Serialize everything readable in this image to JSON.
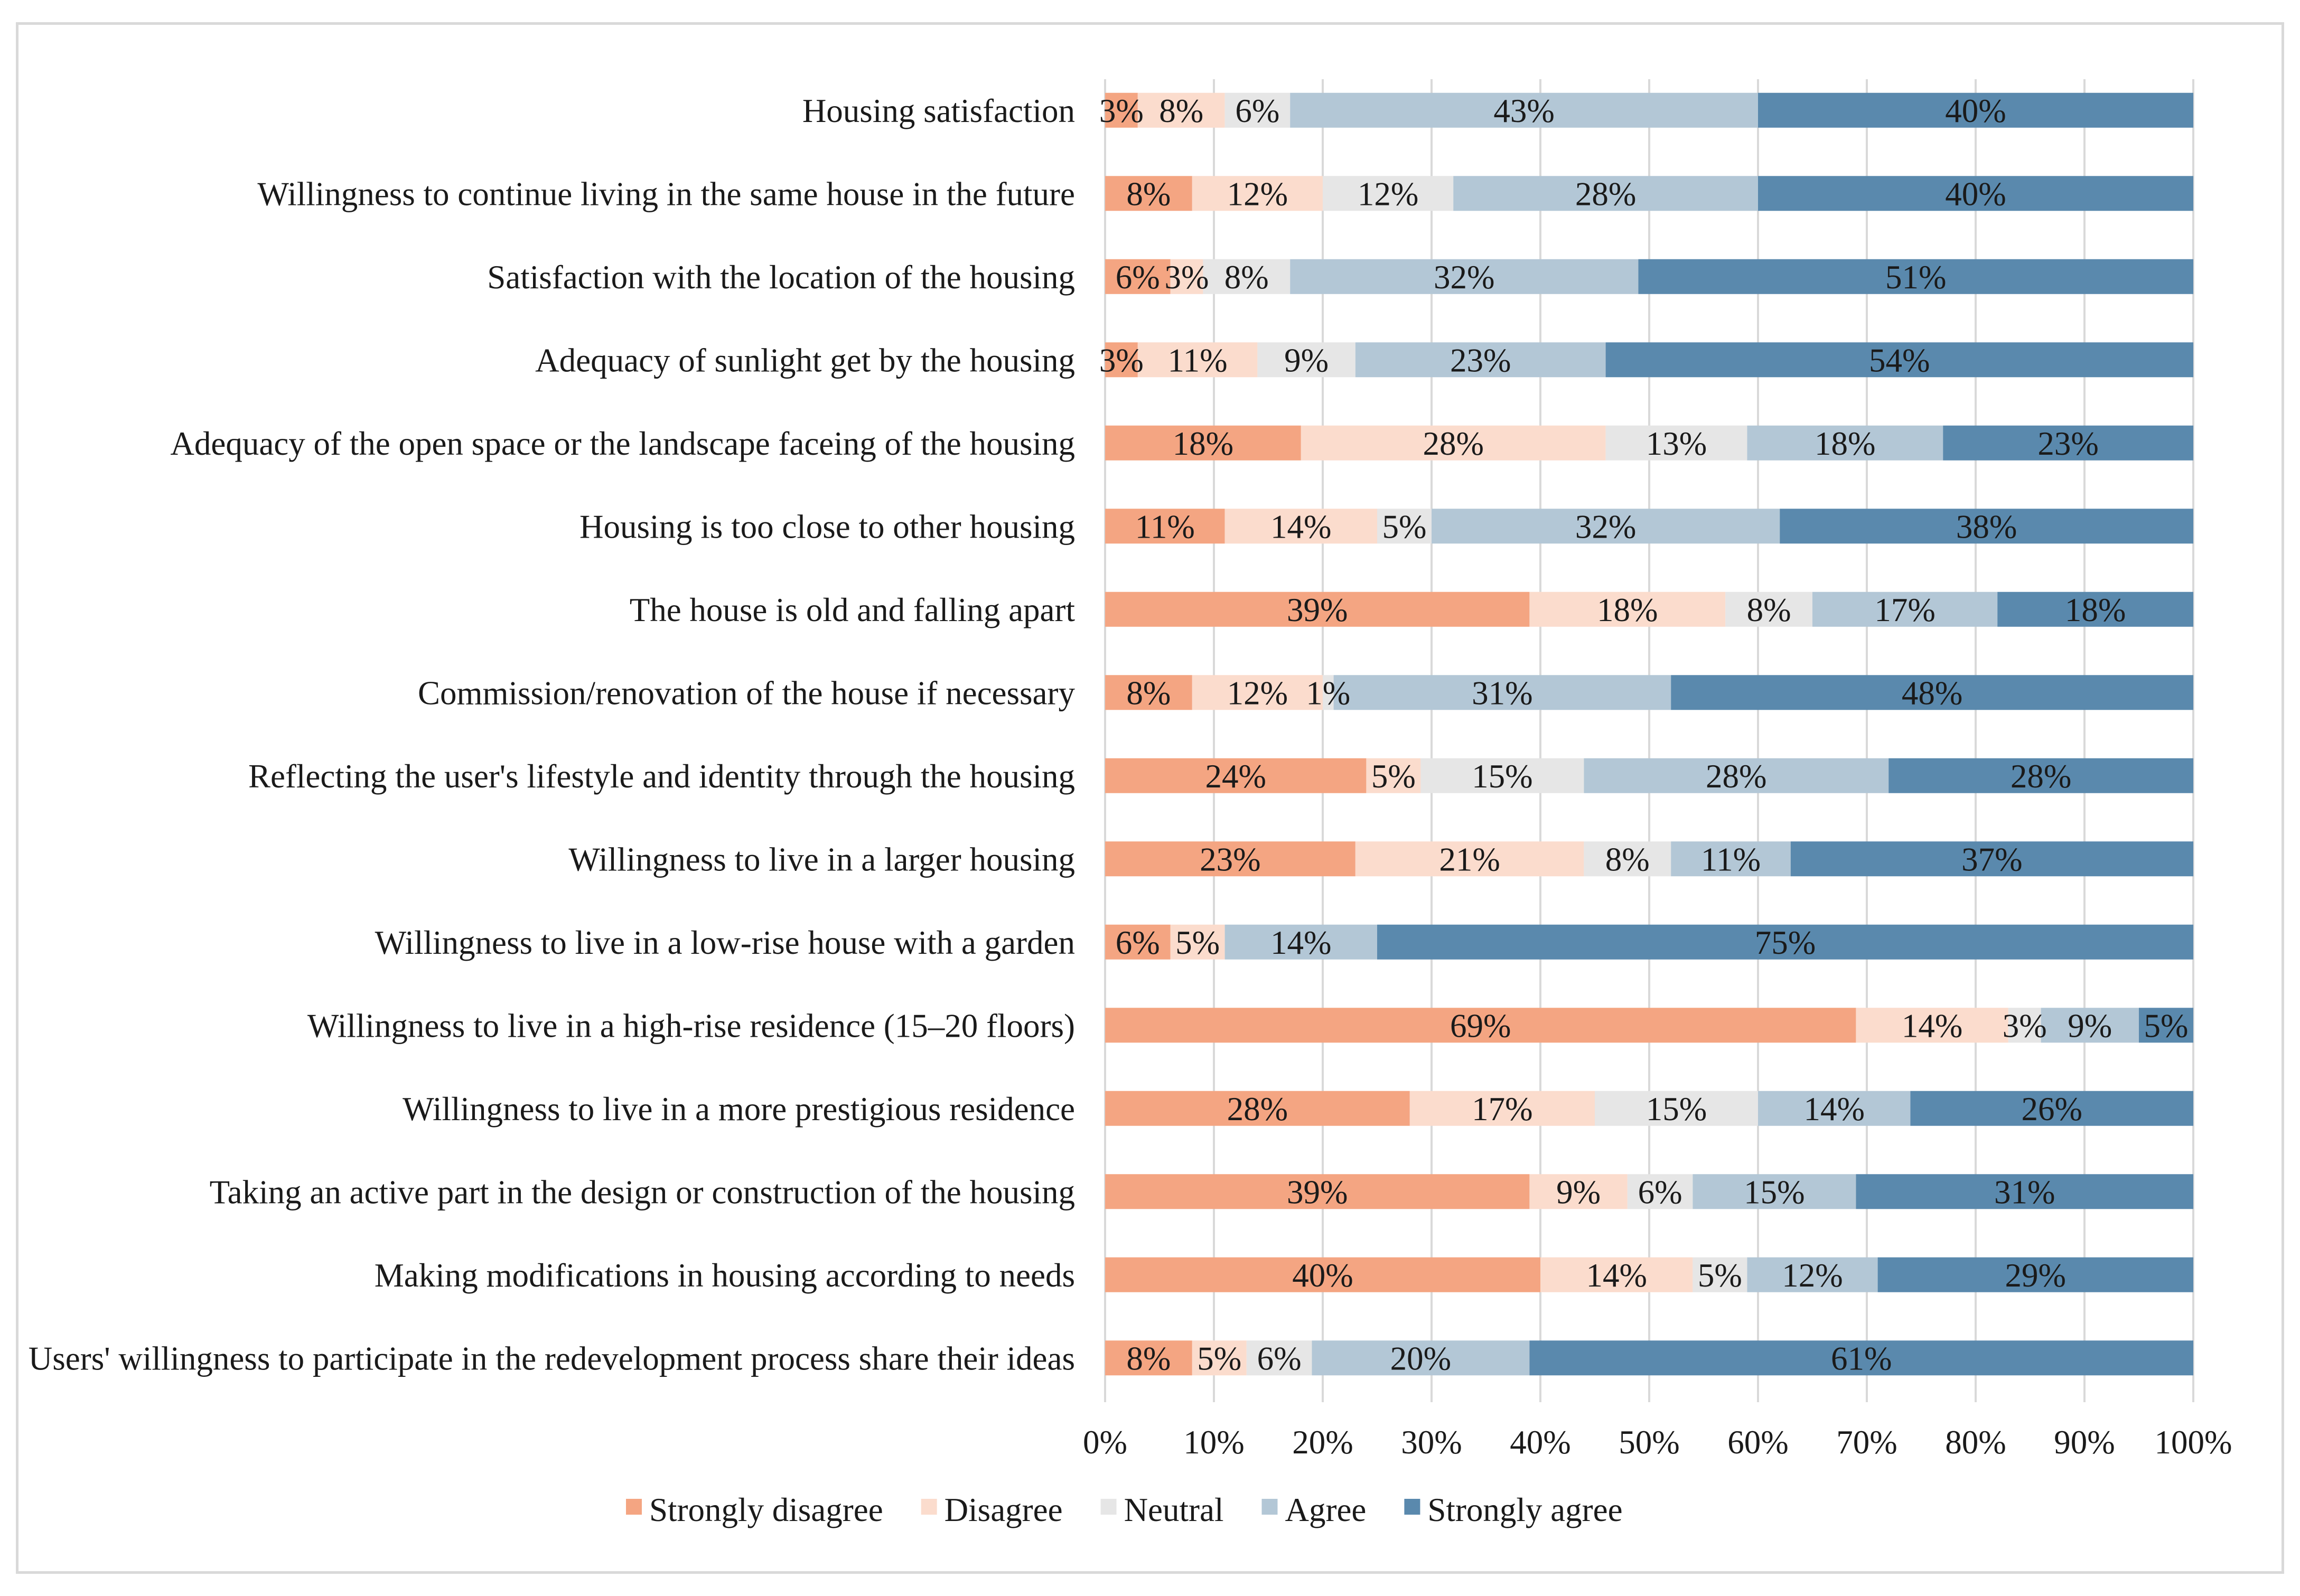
{
  "chart_data": {
    "type": "bar",
    "orientation": "horizontal",
    "stacked": "percent",
    "title": "",
    "xlabel": "",
    "ylabel": "",
    "xlim": [
      0,
      100
    ],
    "x_ticks": [
      "0%",
      "10%",
      "20%",
      "30%",
      "40%",
      "50%",
      "60%",
      "70%",
      "80%",
      "90%",
      "100%"
    ],
    "grid": true,
    "legend_position": "bottom",
    "categories": [
      "Housing satisfaction",
      "Willingness to continue living in the same house in the future",
      "Satisfaction with the location of the housing",
      "Adequacy of sunlight get by the housing",
      "Adequacy of the open space or the landscape faceing of the housing",
      "Housing is too close to other housing",
      "The house is old and falling apart",
      "Commission/renovation of the house if necessary",
      "Reflecting the user's lifestyle and identity through the housing",
      "Willingness to live in a larger housing",
      "Willingness to live in a low-rise house with a garden",
      "Willingness to live in a high-rise residence (15–20 floors)",
      "Willingness to live in a more prestigious residence",
      "Taking an active part in the design or construction of the housing",
      "Making modifications in housing according to needs",
      "Users' willingness to participate in the redevelopment process share their ideas"
    ],
    "series": [
      {
        "name": "Strongly disagree",
        "color": "#f4a582",
        "values": [
          3,
          8,
          6,
          3,
          18,
          11,
          39,
          8,
          24,
          23,
          6,
          69,
          28,
          39,
          40,
          8
        ]
      },
      {
        "name": "Disagree",
        "color": "#fbdccd",
        "values": [
          8,
          12,
          3,
          11,
          28,
          14,
          18,
          12,
          5,
          21,
          5,
          14,
          17,
          9,
          14,
          5
        ]
      },
      {
        "name": "Neutral",
        "color": "#e6e6e6",
        "values": [
          6,
          12,
          8,
          9,
          13,
          5,
          8,
          1,
          15,
          8,
          0,
          3,
          15,
          6,
          5,
          6
        ]
      },
      {
        "name": "Agree",
        "color": "#b3c7d6",
        "values": [
          43,
          28,
          32,
          23,
          18,
          32,
          17,
          31,
          28,
          11,
          14,
          9,
          14,
          15,
          12,
          20
        ]
      },
      {
        "name": "Strongly agree",
        "color": "#5a89ad",
        "values": [
          40,
          40,
          51,
          54,
          23,
          38,
          18,
          48,
          28,
          37,
          75,
          5,
          26,
          31,
          29,
          61
        ]
      }
    ],
    "data_labels": [
      [
        "3%",
        "8%",
        "6%",
        "43%",
        "40%"
      ],
      [
        "8%",
        "12%",
        "12%",
        "28%",
        "40%"
      ],
      [
        "6%",
        "3%",
        "8%",
        "32%",
        "51%"
      ],
      [
        "3%",
        "11%",
        "9%",
        "23%",
        "54%"
      ],
      [
        "18%",
        "28%",
        "13%",
        "18%",
        "23%"
      ],
      [
        "11%",
        "14%",
        "5%",
        "32%",
        "38%"
      ],
      [
        "39%",
        "18%",
        "8%",
        "17%",
        "18%"
      ],
      [
        "8%",
        "12%",
        "1%",
        "31%",
        "48%"
      ],
      [
        "24%",
        "5%",
        "15%",
        "28%",
        "28%"
      ],
      [
        "23%",
        "21%",
        "8%",
        "11%",
        "37%"
      ],
      [
        "6%",
        "5%",
        "",
        "14%",
        "75%"
      ],
      [
        "69%",
        "14%",
        "3%",
        "9%",
        "5%"
      ],
      [
        "28%",
        "17%",
        "15%",
        "14%",
        "26%"
      ],
      [
        "39%",
        "9%",
        "6%",
        "15%",
        "31%"
      ],
      [
        "40%",
        "14%",
        "5%",
        "12%",
        "29%"
      ],
      [
        "8%",
        "5%",
        "6%",
        "20%",
        "61%"
      ]
    ]
  }
}
